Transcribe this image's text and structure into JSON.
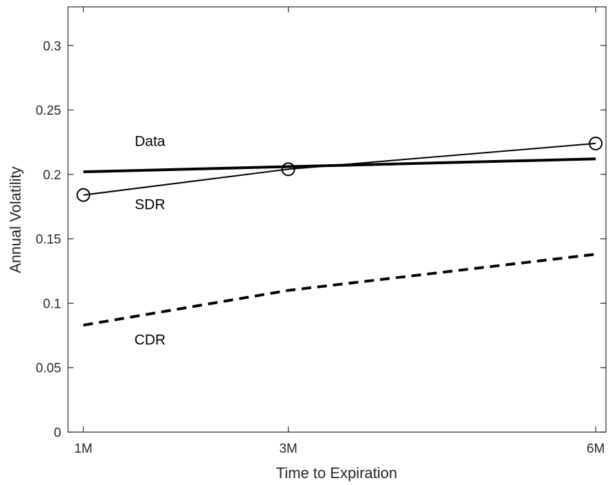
{
  "chart_data": {
    "type": "line",
    "title": "",
    "xlabel": "Time to Expiration",
    "ylabel": "Annual Volatility",
    "categories": [
      "1M",
      "3M",
      "6M"
    ],
    "x": [
      1,
      3,
      6
    ],
    "xlim": [
      0.85,
      6.1
    ],
    "ylim": [
      0,
      0.33
    ],
    "yticks": [
      0,
      0.05,
      0.1,
      0.15,
      0.2,
      0.25,
      0.3
    ],
    "ytick_labels": [
      "0",
      "0.05",
      "0.1",
      "0.15",
      "0.2",
      "0.25",
      "0.3"
    ],
    "grid": false,
    "legend": "none",
    "series": [
      {
        "name": "Data",
        "label": "Data",
        "style": "solid-thick",
        "marker": "none",
        "color": "#000000",
        "x": [
          1,
          6
        ],
        "values": [
          0.202,
          0.212
        ]
      },
      {
        "name": "SDR",
        "label": "SDR",
        "style": "solid-thin",
        "marker": "circle",
        "color": "#000000",
        "x": [
          1,
          3,
          6
        ],
        "values": [
          0.184,
          0.204,
          0.224
        ]
      },
      {
        "name": "CDR",
        "label": "CDR",
        "style": "dashed-thick",
        "marker": "none",
        "color": "#000000",
        "x": [
          1,
          3,
          6
        ],
        "values": [
          0.083,
          0.11,
          0.138
        ]
      }
    ],
    "annotations": [
      {
        "text": "Data",
        "x": 1.65,
        "y": 0.222
      },
      {
        "text": "SDR",
        "x": 1.65,
        "y": 0.173
      },
      {
        "text": "CDR",
        "x": 1.65,
        "y": 0.068
      }
    ]
  }
}
